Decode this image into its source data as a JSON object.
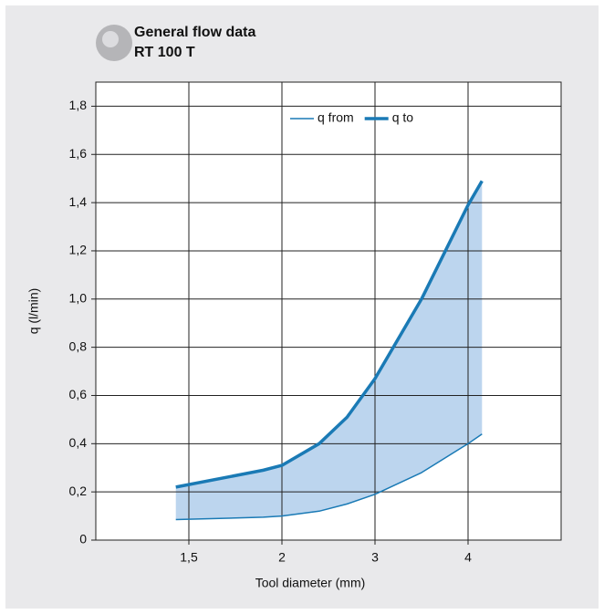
{
  "chart_data": {
    "type": "line",
    "title": "General flow data",
    "subtitle": "RT 100 T",
    "x_label": "Tool diameter (mm)",
    "y_label": "q (l/min)",
    "x": [
      1.43,
      1.9,
      2,
      2.4,
      2.7,
      3,
      3.5,
      4,
      4.15
    ],
    "series": [
      {
        "name": "q from",
        "color": "#1a7ab5",
        "values": [
          0.085,
          0.095,
          0.1,
          0.12,
          0.15,
          0.19,
          0.28,
          0.4,
          0.44
        ]
      },
      {
        "name": "q to",
        "color": "#1a7ab5",
        "values": [
          0.22,
          0.29,
          0.31,
          0.4,
          0.51,
          0.67,
          1.0,
          1.39,
          1.49
        ]
      }
    ],
    "fill_color": "#bcd5ee",
    "xlim": [
      1,
      5
    ],
    "xticks": [
      {
        "value": 1.5,
        "label": "1,5"
      },
      2,
      3,
      4
    ],
    "ylim": [
      0,
      1.9
    ],
    "yticks": [
      0,
      {
        "value": 0.2,
        "label": "0,2"
      },
      {
        "value": 0.4,
        "label": "0,4"
      },
      {
        "value": 0.6,
        "label": "0,6"
      },
      {
        "value": 0.8,
        "label": "0,8"
      },
      {
        "value": 1.0,
        "label": "1,0"
      },
      {
        "value": 1.2,
        "label": "1,2"
      },
      {
        "value": 1.4,
        "label": "1,4"
      },
      {
        "value": 1.6,
        "label": "1,6"
      },
      {
        "value": 1.8,
        "label": "1,8"
      }
    ],
    "grid": true
  }
}
